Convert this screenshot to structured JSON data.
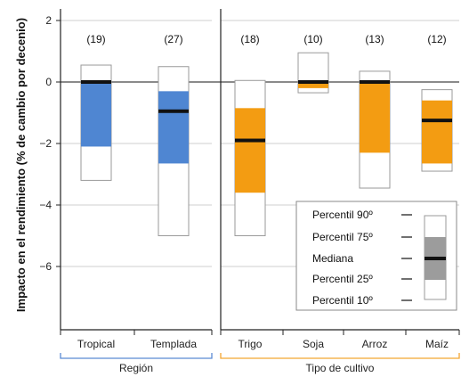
{
  "chart_data": {
    "type": "box",
    "ylabel": "Impacto en el rendimiento (% de cambio por decenio)",
    "ylim": [
      -8,
      2.4
    ],
    "yticks": [
      2,
      0,
      -2,
      -4,
      -6
    ],
    "ytick_labels": [
      "2",
      "0",
      "−2",
      "−4",
      "−6"
    ],
    "panels": [
      {
        "label": "Región",
        "accent": "#5b8ad4",
        "categories": [
          "Tropical",
          "Templada"
        ]
      },
      {
        "label": "Tipo de cultivo",
        "accent": "#f3a632",
        "categories": [
          "Trigo",
          "Soja",
          "Arroz",
          "Maíz"
        ]
      }
    ],
    "series": [
      {
        "category": "Tropical",
        "count": "(19)",
        "p10": -3.2,
        "p25": -2.1,
        "median": 0.0,
        "p75": 0.0,
        "p90": 0.55,
        "color": "#4f86d2"
      },
      {
        "category": "Templada",
        "count": "(27)",
        "p10": -5.0,
        "p25": -2.65,
        "median": -0.95,
        "p75": -0.3,
        "p90": 0.5,
        "color": "#4f86d2"
      },
      {
        "category": "Trigo",
        "count": "(18)",
        "p10": -5.0,
        "p25": -3.6,
        "median": -1.9,
        "p75": -0.85,
        "p90": 0.05,
        "color": "#f39c12"
      },
      {
        "category": "Soja",
        "count": "(10)",
        "p10": -0.35,
        "p25": -0.2,
        "median": 0.0,
        "p75": 0.05,
        "p90": 0.95,
        "color": "#f39c12"
      },
      {
        "category": "Arroz",
        "count": "(13)",
        "p10": -3.45,
        "p25": -2.3,
        "median": 0.0,
        "p75": 0.0,
        "p90": 0.35,
        "color": "#f39c12"
      },
      {
        "category": "Maíz",
        "count": "(12)",
        "p10": -2.9,
        "p25": -2.65,
        "median": -1.25,
        "p75": -0.6,
        "p90": -0.25,
        "color": "#f39c12"
      }
    ],
    "legend": {
      "position": "bottom-right",
      "items": [
        "Percentil 90º",
        "Percentil 75º",
        "Mediana",
        "Percentil 25º",
        "Percentil 10º"
      ]
    }
  }
}
